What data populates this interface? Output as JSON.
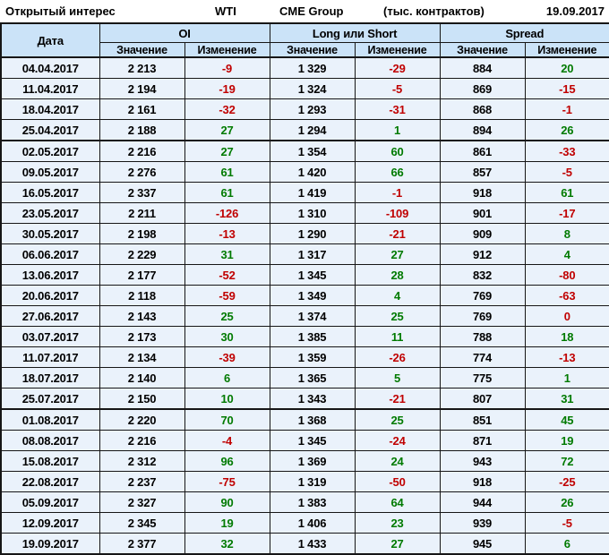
{
  "header": {
    "title": "Открытый интерес",
    "instrument": "WTI",
    "exchange": "CME Group",
    "units": "(тыс. контрактов)",
    "report_date": "19.09.2017"
  },
  "chart_data": {
    "type": "table",
    "title": "Открытый интерес",
    "date_column_label": "Дата",
    "column_groups": [
      {
        "label": "OI"
      },
      {
        "label": "Long или Short"
      },
      {
        "label": "Spread"
      }
    ],
    "value_column_label": "Значение",
    "change_column_label": "Изменение",
    "rows": [
      {
        "date": "04.04.2017",
        "oi": "2 213",
        "oi_change": -9,
        "long_short": "1 329",
        "long_short_change": -29,
        "spread": "884",
        "spread_change": 20
      },
      {
        "date": "11.04.2017",
        "oi": "2 194",
        "oi_change": -19,
        "long_short": "1 324",
        "long_short_change": -5,
        "spread": "869",
        "spread_change": -15
      },
      {
        "date": "18.04.2017",
        "oi": "2 161",
        "oi_change": -32,
        "long_short": "1 293",
        "long_short_change": -31,
        "spread": "868",
        "spread_change": -1
      },
      {
        "date": "25.04.2017",
        "oi": "2 188",
        "oi_change": 27,
        "long_short": "1 294",
        "long_short_change": 1,
        "spread": "894",
        "spread_change": 26
      },
      {
        "date": "02.05.2017",
        "oi": "2 216",
        "oi_change": 27,
        "long_short": "1 354",
        "long_short_change": 60,
        "spread": "861",
        "spread_change": -33
      },
      {
        "date": "09.05.2017",
        "oi": "2 276",
        "oi_change": 61,
        "long_short": "1 420",
        "long_short_change": 66,
        "spread": "857",
        "spread_change": -5
      },
      {
        "date": "16.05.2017",
        "oi": "2 337",
        "oi_change": 61,
        "long_short": "1 419",
        "long_short_change": -1,
        "spread": "918",
        "spread_change": 61
      },
      {
        "date": "23.05.2017",
        "oi": "2 211",
        "oi_change": -126,
        "long_short": "1 310",
        "long_short_change": -109,
        "spread": "901",
        "spread_change": -17
      },
      {
        "date": "30.05.2017",
        "oi": "2 198",
        "oi_change": -13,
        "long_short": "1 290",
        "long_short_change": -21,
        "spread": "909",
        "spread_change": 8
      },
      {
        "date": "06.06.2017",
        "oi": "2 229",
        "oi_change": 31,
        "long_short": "1 317",
        "long_short_change": 27,
        "spread": "912",
        "spread_change": 4
      },
      {
        "date": "13.06.2017",
        "oi": "2 177",
        "oi_change": -52,
        "long_short": "1 345",
        "long_short_change": 28,
        "spread": "832",
        "spread_change": -80
      },
      {
        "date": "20.06.2017",
        "oi": "2 118",
        "oi_change": -59,
        "long_short": "1 349",
        "long_short_change": 4,
        "spread": "769",
        "spread_change": -63
      },
      {
        "date": "27.06.2017",
        "oi": "2 143",
        "oi_change": 25,
        "long_short": "1 374",
        "long_short_change": 25,
        "spread": "769",
        "spread_change": 0
      },
      {
        "date": "03.07.2017",
        "oi": "2 173",
        "oi_change": 30,
        "long_short": "1 385",
        "long_short_change": 11,
        "spread": "788",
        "spread_change": 18
      },
      {
        "date": "11.07.2017",
        "oi": "2 134",
        "oi_change": -39,
        "long_short": "1 359",
        "long_short_change": -26,
        "spread": "774",
        "spread_change": -13
      },
      {
        "date": "18.07.2017",
        "oi": "2 140",
        "oi_change": 6,
        "long_short": "1 365",
        "long_short_change": 5,
        "spread": "775",
        "spread_change": 1
      },
      {
        "date": "25.07.2017",
        "oi": "2 150",
        "oi_change": 10,
        "long_short": "1 343",
        "long_short_change": -21,
        "spread": "807",
        "spread_change": 31
      },
      {
        "date": "01.08.2017",
        "oi": "2 220",
        "oi_change": 70,
        "long_short": "1 368",
        "long_short_change": 25,
        "spread": "851",
        "spread_change": 45
      },
      {
        "date": "08.08.2017",
        "oi": "2 216",
        "oi_change": -4,
        "long_short": "1 345",
        "long_short_change": -24,
        "spread": "871",
        "spread_change": 19
      },
      {
        "date": "15.08.2017",
        "oi": "2 312",
        "oi_change": 96,
        "long_short": "1 369",
        "long_short_change": 24,
        "spread": "943",
        "spread_change": 72
      },
      {
        "date": "22.08.2017",
        "oi": "2 237",
        "oi_change": -75,
        "long_short": "1 319",
        "long_short_change": -50,
        "spread": "918",
        "spread_change": -25
      },
      {
        "date": "05.09.2017",
        "oi": "2 327",
        "oi_change": 90,
        "long_short": "1 383",
        "long_short_change": 64,
        "spread": "944",
        "spread_change": 26
      },
      {
        "date": "12.09.2017",
        "oi": "2 345",
        "oi_change": 19,
        "long_short": "1 406",
        "long_short_change": 23,
        "spread": "939",
        "spread_change": -5
      },
      {
        "date": "19.09.2017",
        "oi": "2 377",
        "oi_change": 32,
        "long_short": "1 433",
        "long_short_change": 27,
        "spread": "945",
        "spread_change": 6
      }
    ],
    "quarter_breaks_after_rows": [
      "25.04.2017",
      "25.07.2017"
    ],
    "colors": {
      "positive": "#007A00",
      "negative": "#C00000",
      "header_bg": "#CBE3F8",
      "row_bg": "#EAF2FB"
    }
  }
}
